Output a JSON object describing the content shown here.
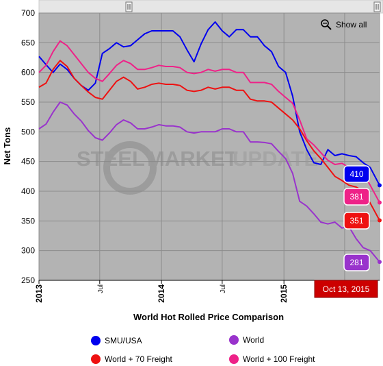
{
  "show_all_label": "Show all",
  "watermark": {
    "word1": "STEEL",
    "word2": "MARKET",
    "word3": "UPDATE"
  },
  "date_badge": "Oct 13, 2015",
  "chart_data": {
    "type": "line",
    "title": "World Hot Rolled Price Comparison",
    "ylabel": "Net Tons",
    "ylim": [
      250,
      700
    ],
    "yticks": [
      250,
      300,
      350,
      400,
      450,
      500,
      550,
      600,
      650,
      700
    ],
    "xlim": [
      "2013-01-01",
      "2015-10-13"
    ],
    "xticks": [
      {
        "date": "2013-01-01",
        "label": "2013",
        "major": true
      },
      {
        "date": "2013-07-01",
        "label": "Jul",
        "major": false
      },
      {
        "date": "2014-01-01",
        "label": "2014",
        "major": true
      },
      {
        "date": "2014-07-01",
        "label": "Jul",
        "major": false
      },
      {
        "date": "2015-01-01",
        "label": "2015",
        "major": true
      },
      {
        "date": "2015-07-01",
        "label": "Jul",
        "major": false
      }
    ],
    "grid": true,
    "background": "#b3b3b3",
    "legend_position": "bottom",
    "series": [
      {
        "name": "SMU/USA",
        "color": "#0000ee",
        "last_value": 410,
        "points": [
          [
            "2013-01-01",
            627
          ],
          [
            "2013-01-22",
            613
          ],
          [
            "2013-02-12",
            600
          ],
          [
            "2013-03-05",
            614
          ],
          [
            "2013-03-26",
            605
          ],
          [
            "2013-04-16",
            590
          ],
          [
            "2013-05-07",
            578
          ],
          [
            "2013-05-28",
            570
          ],
          [
            "2013-06-18",
            582
          ],
          [
            "2013-07-09",
            632
          ],
          [
            "2013-07-30",
            640
          ],
          [
            "2013-08-20",
            650
          ],
          [
            "2013-09-10",
            643
          ],
          [
            "2013-10-01",
            645
          ],
          [
            "2013-10-22",
            655
          ],
          [
            "2013-11-12",
            665
          ],
          [
            "2013-12-03",
            670
          ],
          [
            "2013-12-24",
            670
          ],
          [
            "2014-01-14",
            670
          ],
          [
            "2014-02-04",
            670
          ],
          [
            "2014-02-25",
            660
          ],
          [
            "2014-03-18",
            638
          ],
          [
            "2014-04-08",
            618
          ],
          [
            "2014-04-29",
            648
          ],
          [
            "2014-05-20",
            672
          ],
          [
            "2014-06-10",
            685
          ],
          [
            "2014-07-01",
            670
          ],
          [
            "2014-07-22",
            660
          ],
          [
            "2014-08-12",
            672
          ],
          [
            "2014-09-02",
            672
          ],
          [
            "2014-09-23",
            660
          ],
          [
            "2014-10-14",
            660
          ],
          [
            "2014-11-04",
            645
          ],
          [
            "2014-11-25",
            635
          ],
          [
            "2014-12-16",
            610
          ],
          [
            "2015-01-06",
            600
          ],
          [
            "2015-01-27",
            560
          ],
          [
            "2015-02-17",
            500
          ],
          [
            "2015-03-10",
            470
          ],
          [
            "2015-03-31",
            448
          ],
          [
            "2015-04-21",
            445
          ],
          [
            "2015-05-12",
            470
          ],
          [
            "2015-06-02",
            460
          ],
          [
            "2015-06-23",
            463
          ],
          [
            "2015-07-14",
            460
          ],
          [
            "2015-08-04",
            458
          ],
          [
            "2015-08-25",
            448
          ],
          [
            "2015-09-15",
            440
          ],
          [
            "2015-10-13",
            410
          ]
        ]
      },
      {
        "name": "World + 70 Freight",
        "color": "#ee1111",
        "last_value": 351,
        "points": [
          [
            "2013-01-01",
            575
          ],
          [
            "2013-01-22",
            582
          ],
          [
            "2013-02-12",
            605
          ],
          [
            "2013-03-05",
            620
          ],
          [
            "2013-03-26",
            610
          ],
          [
            "2013-04-16",
            590
          ],
          [
            "2013-05-07",
            578
          ],
          [
            "2013-05-28",
            567
          ],
          [
            "2013-06-18",
            558
          ],
          [
            "2013-07-09",
            555
          ],
          [
            "2013-07-30",
            570
          ],
          [
            "2013-08-20",
            585
          ],
          [
            "2013-09-10",
            592
          ],
          [
            "2013-10-01",
            585
          ],
          [
            "2013-10-22",
            572
          ],
          [
            "2013-11-12",
            575
          ],
          [
            "2013-12-03",
            580
          ],
          [
            "2013-12-24",
            582
          ],
          [
            "2014-01-14",
            580
          ],
          [
            "2014-02-04",
            580
          ],
          [
            "2014-02-25",
            578
          ],
          [
            "2014-03-18",
            570
          ],
          [
            "2014-04-08",
            568
          ],
          [
            "2014-04-29",
            570
          ],
          [
            "2014-05-20",
            575
          ],
          [
            "2014-06-10",
            572
          ],
          [
            "2014-07-01",
            575
          ],
          [
            "2014-07-22",
            575
          ],
          [
            "2014-08-12",
            570
          ],
          [
            "2014-09-02",
            570
          ],
          [
            "2014-09-23",
            555
          ],
          [
            "2014-10-14",
            552
          ],
          [
            "2014-11-04",
            552
          ],
          [
            "2014-11-25",
            550
          ],
          [
            "2014-12-16",
            540
          ],
          [
            "2015-01-06",
            530
          ],
          [
            "2015-01-27",
            520
          ],
          [
            "2015-02-17",
            505
          ],
          [
            "2015-03-10",
            485
          ],
          [
            "2015-03-31",
            468
          ],
          [
            "2015-04-21",
            455
          ],
          [
            "2015-05-12",
            440
          ],
          [
            "2015-06-02",
            425
          ],
          [
            "2015-06-23",
            418
          ],
          [
            "2015-07-14",
            410
          ],
          [
            "2015-08-04",
            407
          ],
          [
            "2015-08-25",
            400
          ],
          [
            "2015-09-15",
            380
          ],
          [
            "2015-10-13",
            351
          ]
        ]
      },
      {
        "name": "World + 100 Freight",
        "color": "#ee2288",
        "last_value": 381,
        "points": [
          [
            "2013-01-01",
            600
          ],
          [
            "2013-01-22",
            612
          ],
          [
            "2013-02-12",
            635
          ],
          [
            "2013-03-05",
            653
          ],
          [
            "2013-03-26",
            645
          ],
          [
            "2013-04-16",
            630
          ],
          [
            "2013-05-07",
            615
          ],
          [
            "2013-05-28",
            600
          ],
          [
            "2013-06-18",
            590
          ],
          [
            "2013-07-09",
            585
          ],
          [
            "2013-07-30",
            598
          ],
          [
            "2013-08-20",
            612
          ],
          [
            "2013-09-10",
            620
          ],
          [
            "2013-10-01",
            615
          ],
          [
            "2013-10-22",
            605
          ],
          [
            "2013-11-12",
            605
          ],
          [
            "2013-12-03",
            608
          ],
          [
            "2013-12-24",
            612
          ],
          [
            "2014-01-14",
            610
          ],
          [
            "2014-02-04",
            610
          ],
          [
            "2014-02-25",
            608
          ],
          [
            "2014-03-18",
            600
          ],
          [
            "2014-04-08",
            598
          ],
          [
            "2014-04-29",
            600
          ],
          [
            "2014-05-20",
            605
          ],
          [
            "2014-06-10",
            602
          ],
          [
            "2014-07-01",
            605
          ],
          [
            "2014-07-22",
            605
          ],
          [
            "2014-08-12",
            600
          ],
          [
            "2014-09-02",
            600
          ],
          [
            "2014-09-23",
            583
          ],
          [
            "2014-10-14",
            583
          ],
          [
            "2014-11-04",
            583
          ],
          [
            "2014-11-25",
            580
          ],
          [
            "2014-12-16",
            568
          ],
          [
            "2015-01-06",
            558
          ],
          [
            "2015-01-27",
            548
          ],
          [
            "2015-02-17",
            520
          ],
          [
            "2015-03-10",
            488
          ],
          [
            "2015-03-31",
            478
          ],
          [
            "2015-04-21",
            465
          ],
          [
            "2015-05-12",
            452
          ],
          [
            "2015-06-02",
            445
          ],
          [
            "2015-06-23",
            447
          ],
          [
            "2015-07-14",
            440
          ],
          [
            "2015-08-04",
            437
          ],
          [
            "2015-08-25",
            430
          ],
          [
            "2015-09-15",
            410
          ],
          [
            "2015-10-13",
            381
          ]
        ]
      },
      {
        "name": "World",
        "color": "#9933cc",
        "last_value": 281,
        "points": [
          [
            "2013-01-01",
            505
          ],
          [
            "2013-01-22",
            513
          ],
          [
            "2013-02-12",
            533
          ],
          [
            "2013-03-05",
            550
          ],
          [
            "2013-03-26",
            545
          ],
          [
            "2013-04-16",
            530
          ],
          [
            "2013-05-07",
            518
          ],
          [
            "2013-05-28",
            502
          ],
          [
            "2013-06-18",
            490
          ],
          [
            "2013-07-09",
            486
          ],
          [
            "2013-07-30",
            498
          ],
          [
            "2013-08-20",
            512
          ],
          [
            "2013-09-10",
            520
          ],
          [
            "2013-10-01",
            515
          ],
          [
            "2013-10-22",
            505
          ],
          [
            "2013-11-12",
            505
          ],
          [
            "2013-12-03",
            508
          ],
          [
            "2013-12-24",
            512
          ],
          [
            "2014-01-14",
            510
          ],
          [
            "2014-02-04",
            510
          ],
          [
            "2014-02-25",
            508
          ],
          [
            "2014-03-18",
            500
          ],
          [
            "2014-04-08",
            498
          ],
          [
            "2014-04-29",
            500
          ],
          [
            "2014-05-20",
            500
          ],
          [
            "2014-06-10",
            500
          ],
          [
            "2014-07-01",
            505
          ],
          [
            "2014-07-22",
            505
          ],
          [
            "2014-08-12",
            500
          ],
          [
            "2014-09-02",
            500
          ],
          [
            "2014-09-23",
            483
          ],
          [
            "2014-10-14",
            483
          ],
          [
            "2014-11-04",
            482
          ],
          [
            "2014-11-25",
            480
          ],
          [
            "2014-12-16",
            467
          ],
          [
            "2015-01-06",
            455
          ],
          [
            "2015-01-27",
            430
          ],
          [
            "2015-02-17",
            383
          ],
          [
            "2015-03-10",
            375
          ],
          [
            "2015-03-31",
            362
          ],
          [
            "2015-04-21",
            348
          ],
          [
            "2015-05-12",
            345
          ],
          [
            "2015-06-02",
            348
          ],
          [
            "2015-06-23",
            338
          ],
          [
            "2015-07-14",
            340
          ],
          [
            "2015-08-04",
            320
          ],
          [
            "2015-08-25",
            305
          ],
          [
            "2015-09-15",
            300
          ],
          [
            "2015-10-13",
            281
          ]
        ]
      }
    ],
    "legend": [
      {
        "name": "SMU/USA",
        "color": "#0000ee"
      },
      {
        "name": "World",
        "color": "#9933cc"
      },
      {
        "name": "World + 70 Freight",
        "color": "#ee1111"
      },
      {
        "name": "World + 100 Freight",
        "color": "#ee2288"
      }
    ]
  }
}
